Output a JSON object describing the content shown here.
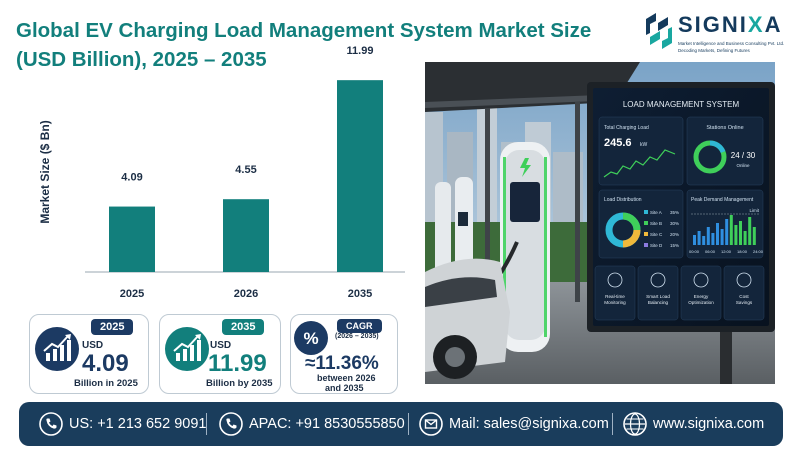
{
  "title": "Global EV Charging Load Management System Market Size (USD Billion), 2025 – 2035",
  "brand": {
    "name_part1": "SIGNI",
    "name_part2": "X",
    "name_part3": "A",
    "tagline1": "Market Intelligence and Business Consulting Pvt. Ltd.",
    "tagline2": "Decoding Markets, Defining Futures",
    "color_dark": "#143a5c",
    "color_teal": "#19a7a0"
  },
  "chart_data": {
    "type": "bar",
    "categories": [
      "2025",
      "2026",
      "2035"
    ],
    "values": [
      4.09,
      4.55,
      11.99
    ],
    "value_labels": [
      "4.09",
      "4.55",
      "11.99"
    ],
    "title": "Global EV Charging Load Management System Market Size (USD Billion), 2025 – 2035",
    "xlabel": "",
    "ylabel": "Market Size ($ Bn)",
    "ylim": [
      0,
      12
    ],
    "grid": false,
    "legend": "none",
    "bar_color": "#127f7c"
  },
  "cards": [
    {
      "year": "2025",
      "usd": "USD",
      "value": "4.09",
      "sub": "Billion in 2025",
      "color": "#1c3a63",
      "icon": "growth-chart-icon"
    },
    {
      "year": "2035",
      "usd": "USD",
      "value": "11.99",
      "sub": "Billion by 2035",
      "color": "#127f7c",
      "icon": "growth-chart-icon"
    },
    {
      "label": "CAGR",
      "period": "(2026 – 2035)",
      "value": "≈11.36%",
      "sub1": "between 2026",
      "sub2": "and 2035",
      "color": "#1c3a63",
      "icon": "percent-icon"
    }
  ],
  "dashboard": {
    "title": "LOAD MANAGEMENT SYSTEM",
    "total_label": "Total Charging Load",
    "total_value": "245.6",
    "total_unit": "kW",
    "stations_label": "Stations Online",
    "stations_value": "24 / 30",
    "stations_status": "Online",
    "distribution_label": "Load Distribution",
    "distribution_items": [
      "Site A",
      "Site B",
      "Site C",
      "Site D"
    ],
    "distribution_values": [
      "35%",
      "30%",
      "20%",
      "15%"
    ],
    "peak_label": "Peak Demand Management",
    "peak_limit": "Limit",
    "peak_times": [
      "00:00",
      "06:00",
      "12:00",
      "18:00",
      "24:00"
    ],
    "features": [
      "Real-time Monitoring",
      "Smart Load Balancing",
      "Energy Optimization",
      "Cost Savings"
    ]
  },
  "footer": {
    "us": "US: +1 213 652 9091",
    "apac": "APAC: +91 8530555850",
    "mail": "Mail: sales@signixa.com",
    "web": "www.signixa.com"
  }
}
